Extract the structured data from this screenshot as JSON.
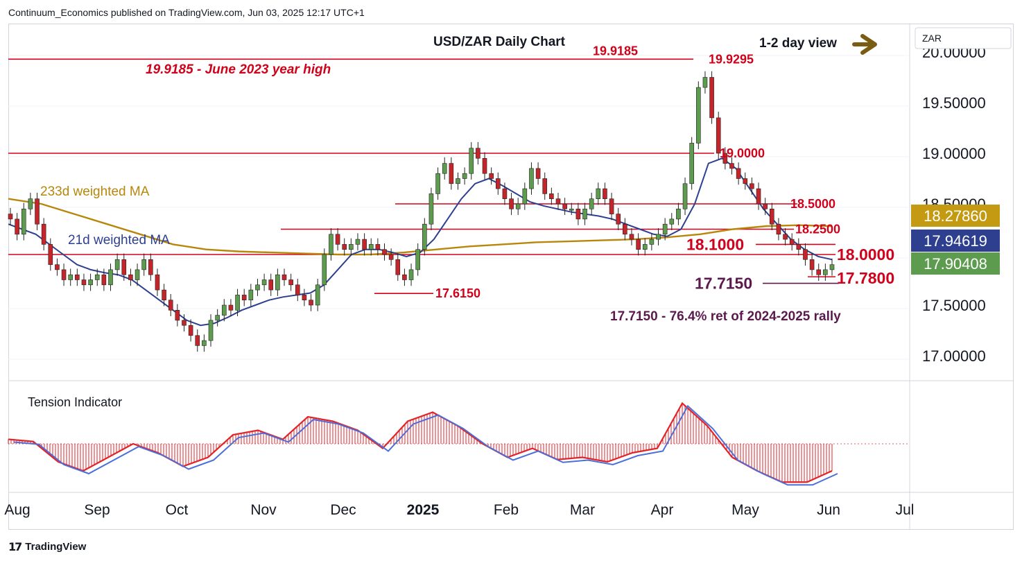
{
  "header": {
    "published": "Continuum_Economics published on TradingView.com, Jun 03, 2025 12:17 UTC+1"
  },
  "footer": {
    "brand": "TradingView",
    "brand_mark": "17"
  },
  "colors": {
    "up": "#5d9c4e",
    "down": "#c4252a",
    "ma21": "#2e3f8f",
    "ma233": "#b8860b",
    "levels": "#d0021b",
    "support_dark": "#5b1a4e",
    "arrow": "#7a5c12",
    "tension": "#e0242a",
    "tension_signal": "#4b6ed8"
  },
  "chart_data": {
    "type": "candlestick",
    "title": "USD/ZAR Daily Chart",
    "symbol_label": "ZAR",
    "view_label": "1-2 day view",
    "ylim": [
      16.8,
      20.2
    ],
    "y_ticks": [
      "20.00000",
      "19.50000",
      "19.00000",
      "18.50000",
      "17.50000",
      "17.00000"
    ],
    "y_tick_values": [
      20.0,
      19.5,
      19.0,
      18.5,
      17.5,
      17.0
    ],
    "x_labels": [
      "Aug",
      "Sep",
      "Oct",
      "Nov",
      "Dec",
      "2025",
      "Feb",
      "Mar",
      "Apr",
      "May",
      "Jun",
      "Jul"
    ],
    "price_tags": [
      {
        "value": 18.2786,
        "label": "18.27860",
        "color": "#c49a12"
      },
      {
        "value": 17.94619,
        "label": "17.94619",
        "color": "#2e3f8f"
      },
      {
        "value": 17.90408,
        "label": "17.90408",
        "color": "#5d9c4e"
      }
    ],
    "levels": [
      {
        "value": 19.9295,
        "label": "19.9295"
      },
      {
        "value": 19.9185,
        "label": "19.9185"
      },
      {
        "value": 19.0,
        "label": "19.0000"
      },
      {
        "value": 18.5,
        "label": "18.5000"
      },
      {
        "value": 18.25,
        "label": "18.2500"
      },
      {
        "value": 18.1,
        "label": "18.1000"
      },
      {
        "value": 18.0,
        "label": "18.0000"
      },
      {
        "value": 17.78,
        "label": "17.7800"
      },
      {
        "value": 17.715,
        "label": "17.7150"
      },
      {
        "value": 17.615,
        "label": "17.6150"
      }
    ],
    "annotations": [
      "19.9185 - June 2023 year high",
      "17.7150 - 76.4% ret of 2024-2025 rally",
      "233d weighted MA",
      "21d weighted MA"
    ],
    "close_series": [
      18.35,
      18.2,
      18.45,
      18.55,
      18.3,
      18.1,
      17.9,
      17.85,
      17.75,
      17.8,
      17.75,
      17.7,
      17.75,
      17.8,
      17.7,
      17.85,
      17.95,
      17.8,
      17.75,
      17.85,
      17.95,
      17.8,
      17.65,
      17.55,
      17.45,
      17.35,
      17.3,
      17.2,
      17.1,
      17.15,
      17.35,
      17.4,
      17.5,
      17.45,
      17.6,
      17.55,
      17.65,
      17.7,
      17.75,
      17.65,
      17.8,
      17.75,
      17.7,
      17.6,
      17.55,
      17.5,
      17.7,
      18.0,
      18.2,
      18.1,
      18.05,
      18.1,
      18.15,
      18.05,
      18.1,
      18.05,
      18.0,
      17.95,
      17.8,
      17.75,
      17.85,
      18.05,
      18.3,
      18.6,
      18.8,
      18.9,
      18.7,
      18.75,
      18.8,
      19.05,
      18.95,
      18.8,
      18.75,
      18.65,
      18.55,
      18.45,
      18.5,
      18.65,
      18.85,
      18.75,
      18.6,
      18.55,
      18.5,
      18.45,
      18.45,
      18.35,
      18.45,
      18.55,
      18.65,
      18.55,
      18.4,
      18.3,
      18.2,
      18.15,
      18.05,
      18.1,
      18.15,
      18.2,
      18.3,
      18.35,
      18.45,
      18.7,
      19.1,
      19.65,
      19.75,
      19.35,
      19.0,
      18.9,
      18.85,
      18.75,
      18.7,
      18.65,
      18.5,
      18.45,
      18.3,
      18.2,
      18.15,
      18.1,
      18.05,
      17.95,
      17.85,
      17.8,
      17.85,
      17.9
    ],
    "ma21_series": [
      18.3,
      18.25,
      18.2,
      18.1,
      18.0,
      17.9,
      17.85,
      17.82,
      17.8,
      17.75,
      17.65,
      17.55,
      17.45,
      17.35,
      17.3,
      17.32,
      17.38,
      17.45,
      17.5,
      17.55,
      17.58,
      17.6,
      17.62,
      17.7,
      17.85,
      18.0,
      18.05,
      18.05,
      18.02,
      17.98,
      18.02,
      18.15,
      18.35,
      18.55,
      18.7,
      18.75,
      18.68,
      18.6,
      18.52,
      18.48,
      18.45,
      18.42,
      18.4,
      18.38,
      18.35,
      18.3,
      18.25,
      18.2,
      18.18,
      18.25,
      18.5,
      18.9,
      18.95,
      18.85,
      18.65,
      18.45,
      18.3,
      18.15,
      18.05,
      17.98,
      17.95
    ],
    "ma233_series": [
      18.55,
      18.5,
      18.4,
      18.3,
      18.2,
      18.1,
      18.05,
      18.03,
      18.02,
      18.01,
      18.0,
      18.0,
      18.02,
      18.05,
      18.08,
      18.1,
      18.12,
      18.13,
      18.14,
      18.15,
      18.17,
      18.2,
      18.25,
      18.28,
      18.29,
      18.28
    ],
    "tension_indicator": {
      "label": "Tension Indicator",
      "values": [
        0.1,
        0.05,
        -0.4,
        -0.6,
        -0.3,
        0.0,
        -0.2,
        -0.5,
        -0.3,
        0.2,
        0.3,
        0.1,
        0.6,
        0.5,
        0.3,
        -0.1,
        0.5,
        0.7,
        0.4,
        0.0,
        -0.3,
        -0.1,
        -0.35,
        -0.3,
        -0.4,
        -0.2,
        -0.1,
        0.9,
        0.4,
        -0.3,
        -0.6,
        -0.85,
        -0.85,
        -0.6
      ]
    }
  }
}
